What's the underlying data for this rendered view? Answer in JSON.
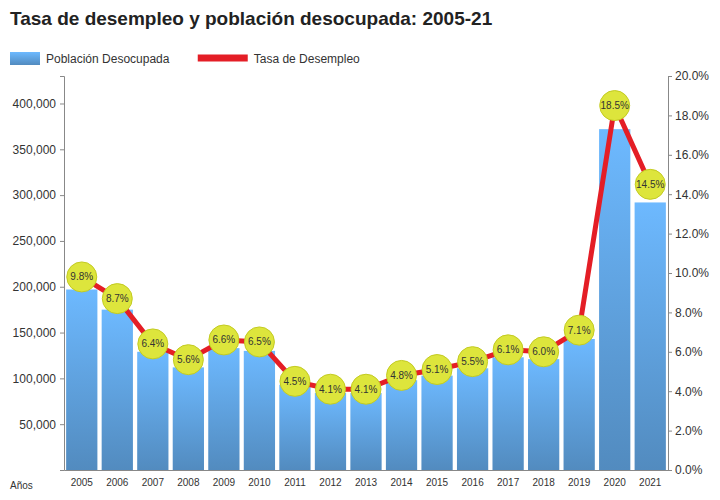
{
  "chart_data": {
    "type": "bar",
    "title": "Tasa de desempleo y población desocupada: 2005-21",
    "x_label": "Años",
    "categories": [
      "2005",
      "2006",
      "2007",
      "2008",
      "2009",
      "2010",
      "2011",
      "2012",
      "2013",
      "2014",
      "2015",
      "2016",
      "2017",
      "2018",
      "2019",
      "2020",
      "2021"
    ],
    "series": [
      {
        "name": "Población Desocupada",
        "type": "bar",
        "color": "#5b9bd5",
        "values": [
          197000,
          175000,
          129000,
          112000,
          133000,
          130000,
          93000,
          84000,
          84000,
          98000,
          103000,
          111000,
          123000,
          121000,
          143000,
          372000,
          292000
        ]
      },
      {
        "name": "Tasa de Desempleo",
        "type": "line",
        "axis": "y2",
        "color": "#e41e26",
        "data_labels": true,
        "values": [
          9.8,
          8.7,
          6.4,
          5.6,
          6.6,
          6.5,
          4.5,
          4.1,
          4.1,
          4.8,
          5.1,
          5.5,
          6.1,
          6.0,
          7.1,
          18.5,
          14.5
        ],
        "value_labels": [
          "9.8%",
          "8.7%",
          "6.4%",
          "5.6%",
          "6.6%",
          "6.5%",
          "4.5%",
          "4.1%",
          "4.1%",
          "4.8%",
          "5.1%",
          "5.5%",
          "6.1%",
          "6.0%",
          "7.1%",
          "18.5%",
          "14.5%"
        ]
      }
    ],
    "ylim": [
      0,
      430000
    ],
    "yticks": [
      {
        "value": 50000,
        "label": "50,000"
      },
      {
        "value": 100000,
        "label": "100,000"
      },
      {
        "value": 150000,
        "label": "150,000"
      },
      {
        "value": 200000,
        "label": "200,000"
      },
      {
        "value": 250000,
        "label": "250,000"
      },
      {
        "value": 300000,
        "label": "300,000"
      },
      {
        "value": 350000,
        "label": "350,000"
      },
      {
        "value": 400000,
        "label": "400,000"
      }
    ],
    "y2lim": [
      0,
      20
    ],
    "y2ticks": [
      {
        "value": 0,
        "label": "0.0%"
      },
      {
        "value": 2,
        "label": "2.0%"
      },
      {
        "value": 4,
        "label": "4.0%"
      },
      {
        "value": 6,
        "label": "6.0%"
      },
      {
        "value": 8,
        "label": "8.0%"
      },
      {
        "value": 10,
        "label": "10.0%"
      },
      {
        "value": 12,
        "label": "12.0%"
      },
      {
        "value": 14,
        "label": "14.0%"
      },
      {
        "value": 16,
        "label": "16.0%"
      },
      {
        "value": 18,
        "label": "18.0%"
      },
      {
        "value": 20,
        "label": "20.0%"
      }
    ],
    "grid": false,
    "legend": "top-left"
  }
}
